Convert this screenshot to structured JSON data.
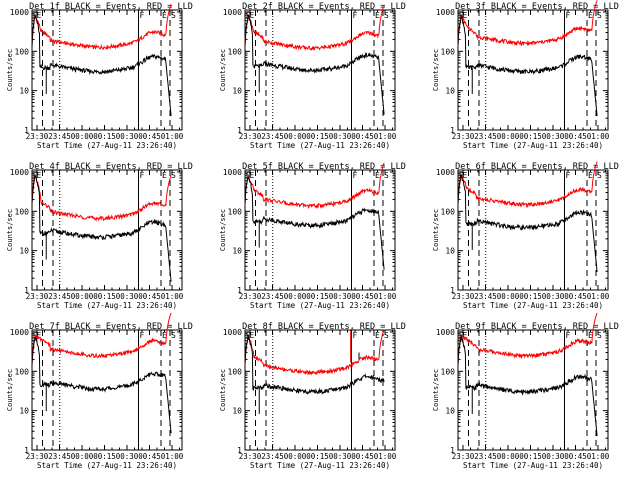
{
  "colors": {
    "background": "#ffffff",
    "events": "#000000",
    "lld": "#ff0000",
    "axes": "#000000"
  },
  "shared": {
    "xlabel": "Start Time (27-Aug-11 23:26:40)",
    "ylabel": "Counts/sec",
    "x_tick_labels": [
      "23:30",
      "23:45",
      "00:00",
      "00:15",
      "00:30",
      "00:45",
      "01:00"
    ],
    "y_tick_labels": [
      "1",
      "10",
      "100",
      "1000"
    ],
    "marker_labels": [
      "F",
      "E",
      "S"
    ]
  },
  "chart_data": [
    {
      "type": "line",
      "title": "Det 1f BLACK = Events, RED = LLD",
      "xlabel": "Start Time (27-Aug-11 23:26:40)",
      "ylabel": "Counts/sec",
      "ylog": true,
      "ylim": [
        1,
        1000
      ],
      "x_unit": "minutes after 23:26:40",
      "xlim": [
        0,
        100
      ],
      "red_level": 230,
      "black_level": 55,
      "red_drop": false,
      "black_drop": true,
      "spike": false
    },
    {
      "type": "line",
      "title": "Det 2f BLACK = Events, RED = LLD",
      "xlabel": "Start Time (27-Aug-11 23:26:40)",
      "ylabel": "Counts/sec",
      "ylog": true,
      "ylim": [
        1,
        1000
      ],
      "x_unit": "minutes after 23:26:40",
      "xlim": [
        0,
        100
      ],
      "red_level": 220,
      "black_level": 60,
      "red_drop": false,
      "black_drop": true,
      "spike": false
    },
    {
      "type": "line",
      "title": "Det 3f BLACK = Events, RED = LLD",
      "xlabel": "Start Time (27-Aug-11 23:26:40)",
      "ylabel": "Counts/sec",
      "ylog": true,
      "ylim": [
        1,
        1000
      ],
      "x_unit": "minutes after 23:26:40",
      "xlim": [
        0,
        100
      ],
      "red_level": 290,
      "black_level": 55,
      "red_drop": false,
      "black_drop": true,
      "spike": false
    },
    {
      "type": "line",
      "title": "Det 4f BLACK = Events, RED = LLD",
      "xlabel": "Start Time (27-Aug-11 23:26:40)",
      "ylabel": "Counts/sec",
      "ylog": true,
      "ylim": [
        1,
        1000
      ],
      "x_unit": "minutes after 23:26:40",
      "xlim": [
        0,
        100
      ],
      "red_level": 120,
      "black_level": 40,
      "red_drop": false,
      "black_drop": true,
      "spike": false
    },
    {
      "type": "line",
      "title": "Det 5f BLACK = Events, RED = LLD",
      "xlabel": "Start Time (27-Aug-11 23:26:40)",
      "ylabel": "Counts/sec",
      "ylog": true,
      "ylim": [
        1,
        1000
      ],
      "x_unit": "minutes after 23:26:40",
      "xlim": [
        0,
        100
      ],
      "red_level": 250,
      "black_level": 80,
      "red_drop": false,
      "black_drop": true,
      "spike": false
    },
    {
      "type": "line",
      "title": "Det 6f BLACK = Events, RED = LLD",
      "xlabel": "Start Time (27-Aug-11 23:26:40)",
      "ylabel": "Counts/sec",
      "ylog": true,
      "ylim": [
        1,
        1000
      ],
      "x_unit": "minutes after 23:26:40",
      "xlim": [
        0,
        100
      ],
      "red_level": 270,
      "black_level": 70,
      "red_drop": false,
      "black_drop": true,
      "spike": false
    },
    {
      "type": "line",
      "title": "Det 7f BLACK = Events, RED = LLD",
      "xlabel": "Start Time (27-Aug-11 23:26:40)",
      "ylabel": "Counts/sec",
      "ylog": true,
      "ylim": [
        1,
        1000
      ],
      "x_unit": "minutes after 23:26:40",
      "xlim": [
        0,
        100
      ],
      "red_level": 450,
      "black_level": 65,
      "red_drop": false,
      "black_drop": true,
      "spike": false
    },
    {
      "type": "line",
      "title": "Det 8f BLACK = Events, RED = LLD",
      "xlabel": "Start Time (27-Aug-11 23:26:40)",
      "ylabel": "Counts/sec",
      "ylog": true,
      "ylim": [
        1,
        1000
      ],
      "x_unit": "minutes after 23:26:40",
      "xlim": [
        0,
        100
      ],
      "red_level": 170,
      "black_level": 55,
      "red_drop": false,
      "black_drop": false,
      "spike": true
    },
    {
      "type": "line",
      "title": "Det 9f BLACK = Events, RED = LLD",
      "xlabel": "Start Time (27-Aug-11 23:26:40)",
      "ylabel": "Counts/sec",
      "ylog": true,
      "ylim": [
        1,
        1000
      ],
      "x_unit": "minutes after 23:26:40",
      "xlim": [
        0,
        100
      ],
      "red_level": 450,
      "black_level": 55,
      "red_drop": false,
      "black_drop": true,
      "spike": false
    }
  ]
}
